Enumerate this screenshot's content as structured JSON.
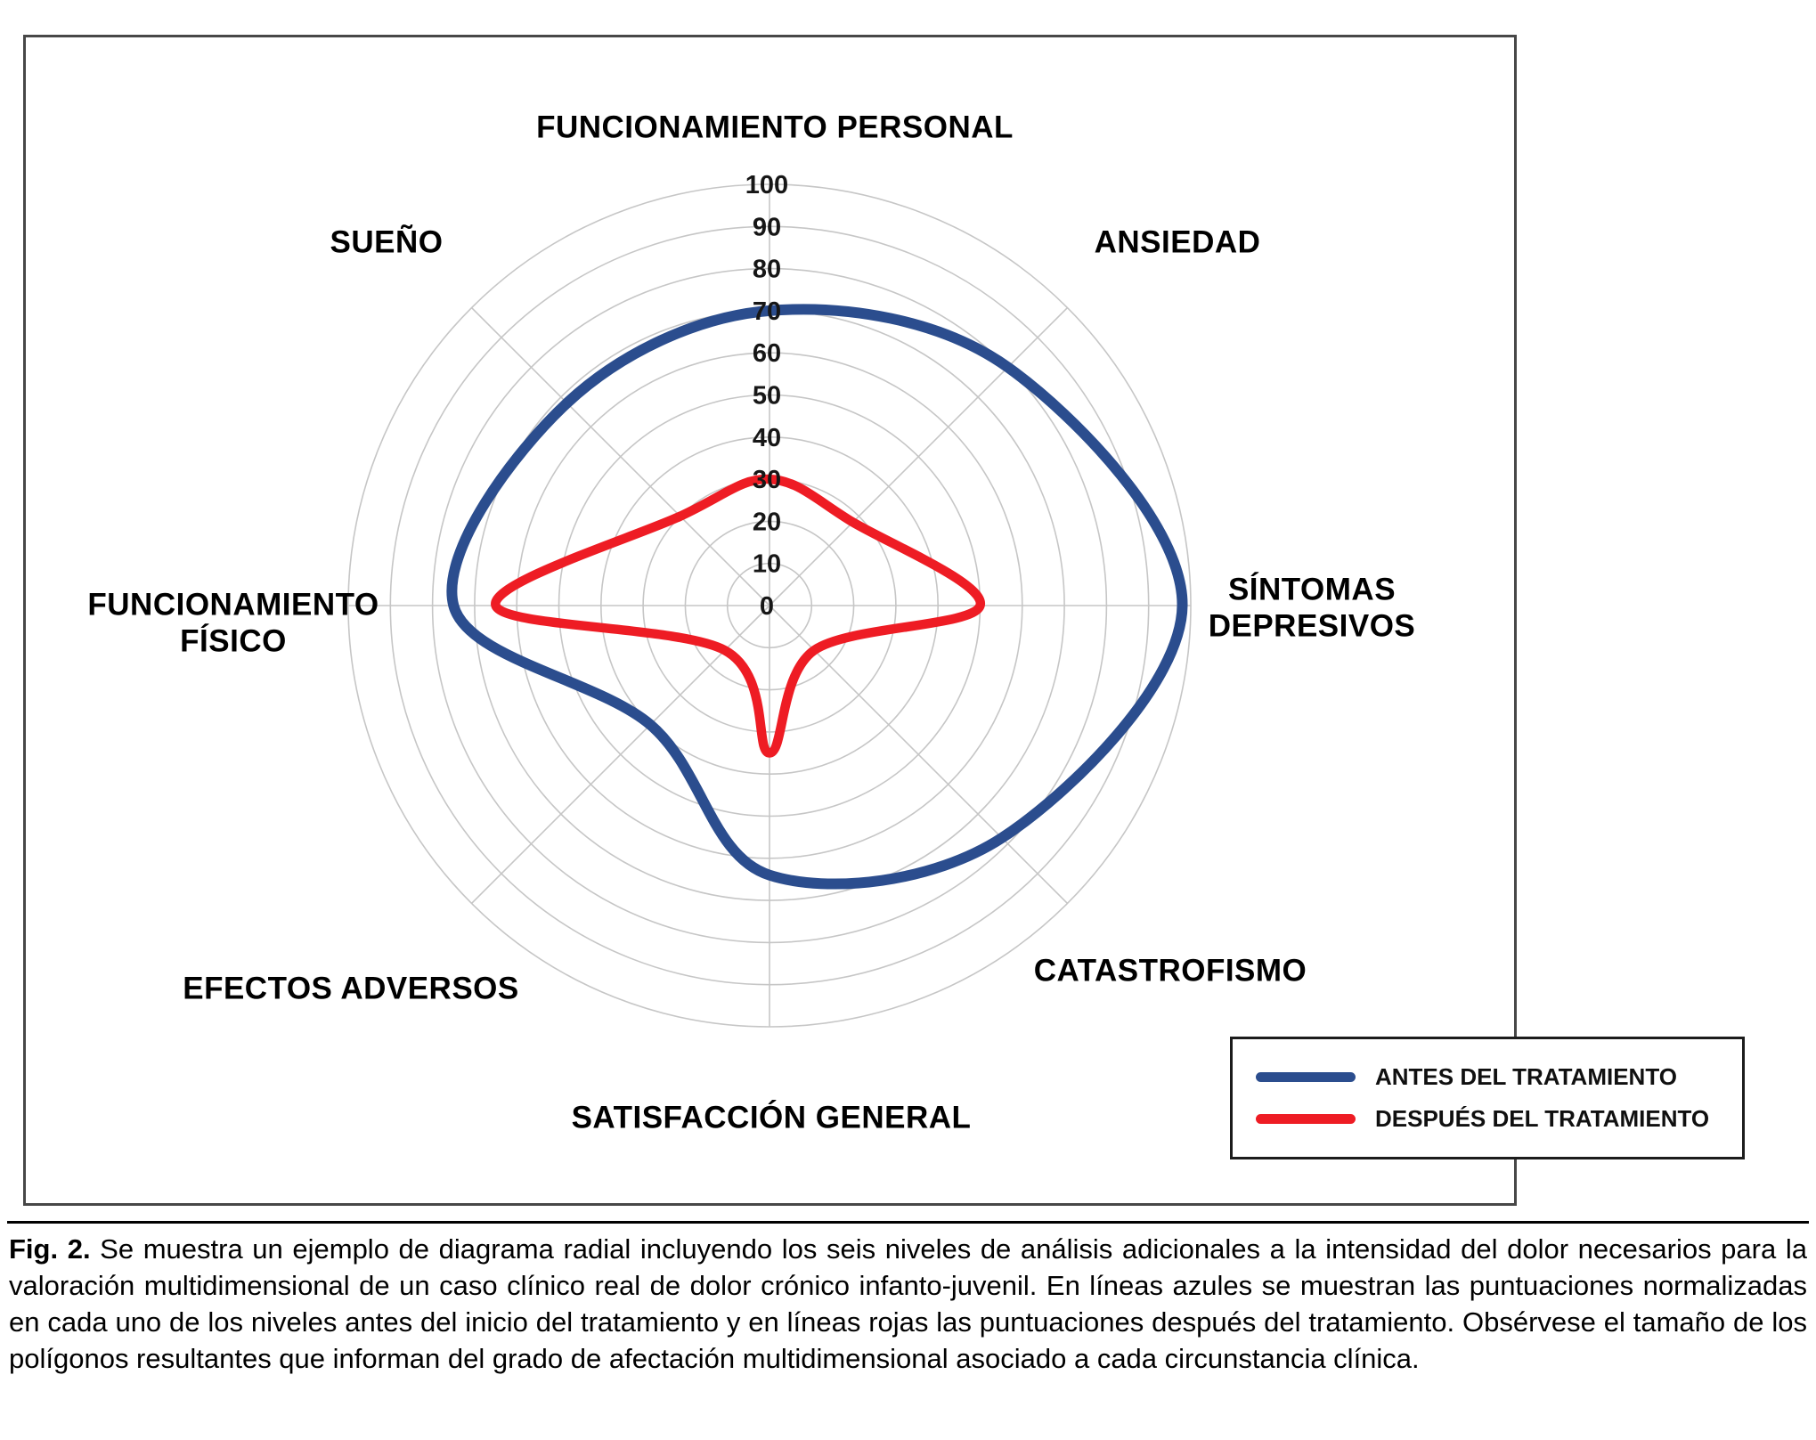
{
  "caption": {
    "label": "Fig. 2.",
    "text": "Se muestra un ejemplo de diagrama radial incluyendo los seis niveles de análisis adicionales a la intensidad del dolor necesarios para la valoración multidimensional de un caso clínico real de dolor crónico infanto-juvenil. En líneas azules se muestran las puntuaciones normalizadas en cada uno de los niveles antes del inicio del tratamiento y en líneas rojas las puntuaciones después del tratamiento. Obsérvese el tamaño de los polígonos resultantes que informan del grado de afectación multidimensional asociado a cada circunstancia clínica."
  },
  "legend": {
    "items": [
      {
        "label": "ANTES DEL TRATAMIENTO",
        "color": "#2b4d8e"
      },
      {
        "label": "DESPUÉS DEL TRATAMIENTO",
        "color": "#ee1c24"
      }
    ]
  },
  "chart_data": {
    "type": "radar",
    "categories": [
      "FUNCIONAMIENTO PERSONAL",
      "ANSIEDAD",
      "SÍNTOMAS DEPRESIVOS",
      "CATASTROFISMO",
      "SATISFACCIÓN GENERAL",
      "EFECTOS ADVERSOS",
      "FUNCIONAMIENTO FÍSICO",
      "SUEÑO"
    ],
    "series": [
      {
        "name": "ANTES DEL TRATAMIENTO",
        "color": "#2b4d8e",
        "values": [
          70,
          80,
          98,
          78,
          64,
          40,
          75,
          68
        ]
      },
      {
        "name": "DESPUÉS DEL TRATAMIENTO",
        "color": "#ee1c24",
        "values": [
          30,
          28,
          50,
          15,
          35,
          15,
          65,
          30
        ]
      }
    ],
    "radial_ticks": [
      0,
      10,
      20,
      30,
      40,
      50,
      60,
      70,
      80,
      90,
      100
    ],
    "rlim": [
      0,
      100
    ],
    "grid": "circular",
    "grid_color": "#c6c6c6",
    "tick_color": "#161616",
    "legend_position": "bottom-right",
    "smooth_lines": true
  }
}
